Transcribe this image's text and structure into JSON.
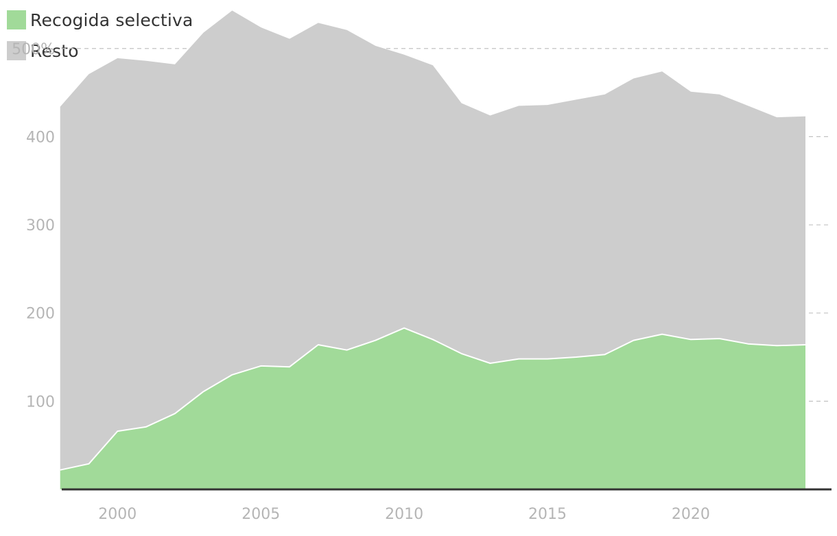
{
  "colors": {
    "recogida": "#a1da99",
    "resto": "#cdcdcd",
    "grid": "#c2c2c2",
    "axis": "#333333",
    "tick_text": "#b5b5b5"
  },
  "legend": [
    {
      "label": "Recogida selectiva",
      "color": "#a1da99"
    },
    {
      "label": "Resto",
      "color": "#cdcdcd"
    }
  ],
  "chart_data": {
    "type": "area",
    "stacked": true,
    "title": "",
    "xlabel": "",
    "ylabel": "",
    "x": [
      1998,
      1999,
      2000,
      2001,
      2002,
      2003,
      2004,
      2005,
      2006,
      2007,
      2008,
      2009,
      2010,
      2011,
      2012,
      2013,
      2014,
      2015,
      2016,
      2017,
      2018,
      2019,
      2020,
      2021,
      2022,
      2023,
      2024
    ],
    "series": [
      {
        "name": "Recogida selectiva",
        "color": "#a1da99",
        "values": [
          22,
          29,
          66,
          71,
          86,
          111,
          130,
          140,
          139,
          164,
          158,
          169,
          183,
          170,
          154,
          143,
          148,
          148,
          150,
          153,
          169,
          176,
          170,
          171,
          165,
          163,
          164
        ]
      },
      {
        "name": "Resto",
        "color": "#cdcdcd",
        "values": [
          412,
          442,
          423,
          415,
          396,
          407,
          413,
          384,
          372,
          365,
          363,
          334,
          310,
          311,
          284,
          281,
          287,
          288,
          292,
          295,
          297,
          298,
          281,
          277,
          270,
          259,
          259
        ]
      }
    ],
    "totals": [
      434,
      471,
      489,
      486,
      482,
      518,
      543,
      524,
      511,
      529,
      521,
      503,
      493,
      481,
      438,
      424,
      435,
      436,
      442,
      448,
      466,
      474,
      451,
      448,
      435,
      422,
      423
    ],
    "xlim": [
      1995.9,
      2025.1
    ],
    "ylim": [
      0,
      555
    ],
    "y_ticks": [
      100,
      200,
      300,
      400,
      500
    ],
    "y_tick_labels": [
      "100",
      "200",
      "300",
      "400",
      "500%"
    ],
    "x_ticks": [
      2000,
      2005,
      2010,
      2015,
      2020
    ],
    "x_tick_labels": [
      "2000",
      "2005",
      "2010",
      "2015",
      "2020"
    ],
    "grid": "horizontal-dashed",
    "legend_position": "top-left"
  }
}
